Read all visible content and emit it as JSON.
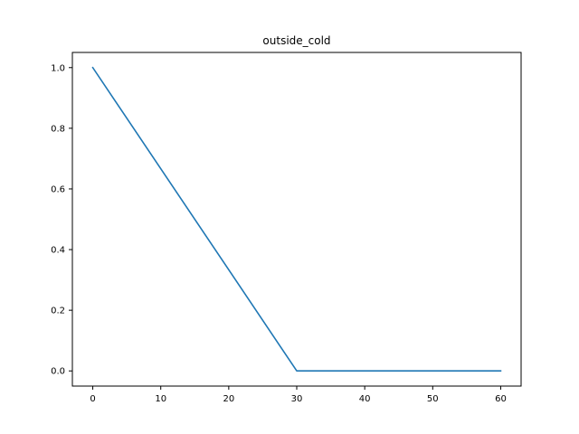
{
  "chart_data": {
    "type": "line",
    "title": "outside_cold",
    "xlabel": "",
    "ylabel": "",
    "xlim": [
      -3,
      63
    ],
    "ylim": [
      -0.05,
      1.05
    ],
    "grid": false,
    "x_ticks": [
      0,
      10,
      20,
      30,
      40,
      50,
      60
    ],
    "y_ticks": [
      0.0,
      0.2,
      0.4,
      0.6,
      0.8,
      1.0
    ],
    "x_tick_labels": [
      "0",
      "10",
      "20",
      "30",
      "40",
      "50",
      "60"
    ],
    "y_tick_labels": [
      "0.0",
      "0.2",
      "0.4",
      "0.6",
      "0.8",
      "1.0"
    ],
    "series": [
      {
        "color": "#1f77b4",
        "x": [
          0,
          30,
          60
        ],
        "y": [
          1.0,
          0.0,
          0.0
        ]
      }
    ]
  }
}
